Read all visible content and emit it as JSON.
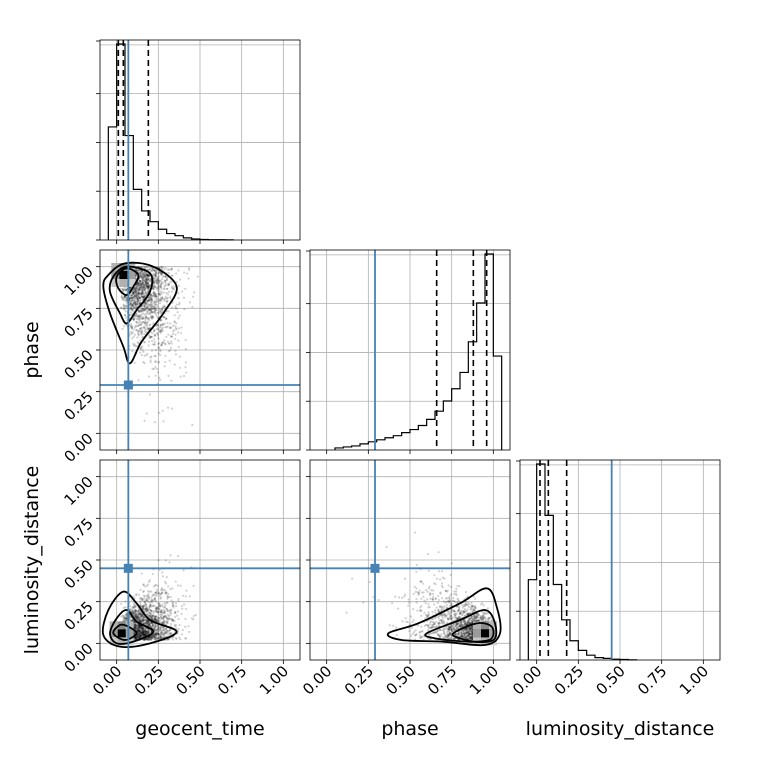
{
  "chart_data": {
    "type": "corner",
    "parameters": [
      "geocent_time",
      "phase",
      "luminosity_distance"
    ],
    "truths": {
      "geocent_time": 0.07,
      "phase": 0.29,
      "luminosity_distance": 0.45
    },
    "axis_range": [
      -0.1,
      1.1
    ],
    "ticks": [
      0.0,
      0.25,
      0.5,
      0.75,
      1.0
    ],
    "tick_labels": [
      "0.00",
      "0.25",
      "0.50",
      "0.75",
      "1.00"
    ],
    "grid": true,
    "truth_color": "#4682b4",
    "histograms": {
      "geocent_time": {
        "bin_edges": [
          -0.05,
          0.0,
          0.05,
          0.1,
          0.15,
          0.2,
          0.25,
          0.3,
          0.35,
          0.4,
          0.45,
          0.5,
          0.55,
          0.6,
          0.65,
          0.7
        ],
        "counts": [
          105,
          182,
          97,
          47,
          27,
          17,
          10,
          6,
          4,
          2,
          1,
          0.5,
          0.3,
          0.2,
          0.1
        ],
        "quantiles": [
          0.01,
          0.04,
          0.19
        ]
      },
      "phase": {
        "bin_edges": [
          0.05,
          0.1,
          0.15,
          0.2,
          0.25,
          0.3,
          0.35,
          0.4,
          0.45,
          0.5,
          0.55,
          0.6,
          0.65,
          0.7,
          0.75,
          0.8,
          0.85,
          0.9,
          0.95,
          1.0,
          1.05
        ],
        "counts": [
          1,
          1.5,
          2,
          3,
          4,
          5,
          6,
          7,
          8.5,
          10,
          12,
          15,
          19,
          24,
          30,
          38,
          53,
          72,
          96,
          46
        ],
        "quantiles": [
          0.66,
          0.88,
          0.96
        ]
      },
      "luminosity_distance": {
        "bin_edges": [
          -0.05,
          0.0,
          0.05,
          0.1,
          0.15,
          0.2,
          0.25,
          0.3,
          0.35,
          0.4,
          0.45,
          0.5,
          0.55,
          0.6
        ],
        "counts": [
          50,
          122,
          90,
          47,
          25,
          12,
          6,
          3,
          1.5,
          1,
          0.5,
          0.3,
          0.1
        ],
        "quantiles": [
          0.02,
          0.07,
          0.18
        ]
      }
    },
    "joint": [
      {
        "x": "geocent_time",
        "y": "phase",
        "peak": [
          0.04,
          0.95
        ]
      },
      {
        "x": "geocent_time",
        "y": "luminosity_distance",
        "peak": [
          0.03,
          0.06
        ]
      },
      {
        "x": "phase",
        "y": "luminosity_distance",
        "peak": [
          0.95,
          0.06
        ]
      }
    ]
  }
}
